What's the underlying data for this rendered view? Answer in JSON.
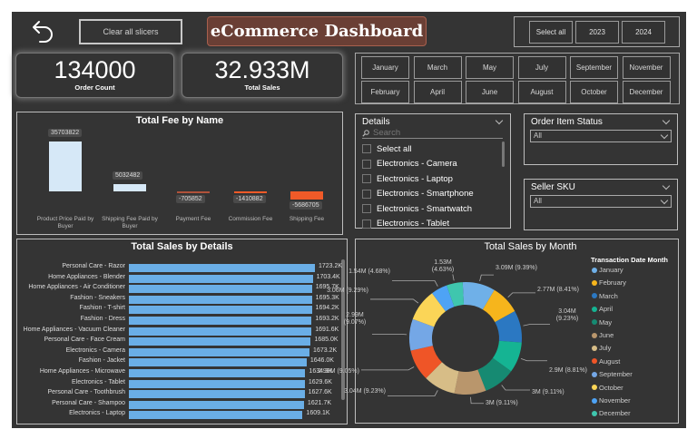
{
  "header": {
    "back_icon": "undo-arrow-icon",
    "clear_label": "Clear all slicers",
    "title": "eCommerce Dashboard",
    "year_buttons": [
      "Select all",
      "2023",
      "2024"
    ]
  },
  "kpis": [
    {
      "value": "134000",
      "label": "Order Count"
    },
    {
      "value": "32.933M",
      "label": "Total Sales"
    }
  ],
  "months_slicer": {
    "top_row": [
      "January",
      "March",
      "May",
      "July",
      "September",
      "November"
    ],
    "bottom_row": [
      "February",
      "April",
      "June",
      "August",
      "October",
      "December"
    ]
  },
  "details_slicer": {
    "title": "Details",
    "search_placeholder": "Search",
    "items": [
      "Select all",
      "Electronics - Camera",
      "Electronics - Laptop",
      "Electronics - Smartphone",
      "Electronics - Smartwatch",
      "Electronics - Tablet"
    ]
  },
  "order_status_slicer": {
    "title": "Order Item Status",
    "value": "All"
  },
  "seller_sku_slicer": {
    "title": "Seller SKU",
    "value": "All"
  },
  "colors": {
    "canvas": "#343434",
    "title_bg": "#6a3f35",
    "positive_bar": "#d6e8f7",
    "negative_bar": "#f05a28",
    "sales_bar": "#6aaee6"
  },
  "chart_data": [
    {
      "type": "bar",
      "title": "Total Fee by Name",
      "categories": [
        "Product Price Paid by Buyer",
        "Shipping Fee Paid by Buyer",
        "Payment Fee",
        "Commission Fee",
        "Shipping Fee"
      ],
      "values": [
        35703822,
        5032482,
        -705852,
        -1410882,
        -5686705
      ],
      "value_labels": [
        "35703822",
        "5032482",
        "-705852",
        "-1410882",
        "-5686705"
      ],
      "xlabel": "",
      "ylabel": ""
    },
    {
      "type": "bar",
      "orientation": "horizontal",
      "title": "Total Sales by Details",
      "categories": [
        "Personal Care - Razor",
        "Home Appliances - Blender",
        "Home Appliances - Air Conditioner",
        "Fashion - Sneakers",
        "Fashion - T-shirt",
        "Fashion - Dress",
        "Home Appliances - Vacuum Cleaner",
        "Personal Care - Face Cream",
        "Electronics - Camera",
        "Fashion - Jacket",
        "Home Appliances - Microwave",
        "Electronics - Tablet",
        "Personal Care - Toothbrush",
        "Personal Care - Shampoo",
        "Electronics - Laptop"
      ],
      "values": [
        1723.2,
        1703.4,
        1695.7,
        1695.3,
        1694.2,
        1693.2,
        1691.6,
        1685.0,
        1673.2,
        1646.0,
        1634.3,
        1629.6,
        1627.6,
        1621.7,
        1609.1
      ],
      "value_labels": [
        "1723.2K",
        "1703.4K",
        "1695.7K",
        "1695.3K",
        "1694.2K",
        "1693.2K",
        "1691.6K",
        "1685.0K",
        "1673.2K",
        "1646.0K",
        "1634.3K",
        "1629.6K",
        "1627.6K",
        "1621.7K",
        "1609.1K"
      ],
      "unit": "K"
    },
    {
      "type": "pie",
      "subtype": "donut",
      "title": "Total Sales by Month",
      "legend_title": "Transaction Date Month",
      "legend_position": "right",
      "slices": [
        {
          "name": "January",
          "value": 3.09,
          "label": "3.09M (9.39%)",
          "color": "#6fb0e8"
        },
        {
          "name": "February",
          "value": 2.77,
          "label": "2.77M (8.41%)",
          "color": "#f6b51c"
        },
        {
          "name": "March",
          "value": 3.04,
          "label": "3.04M (9.23%)",
          "color": "#2b78c2"
        },
        {
          "name": "April",
          "value": 2.9,
          "label": "2.9M (8.81%)",
          "color": "#15b493"
        },
        {
          "name": "May",
          "value": 3.0,
          "label": "3M (9.11%)",
          "color": "#168a72"
        },
        {
          "name": "June",
          "value": 3.0,
          "label": "3M (9.11%)",
          "color": "#b9966c"
        },
        {
          "name": "July",
          "value": 3.04,
          "label": "3.04M (9.23%)",
          "color": "#d7bd87"
        },
        {
          "name": "August",
          "value": 2.98,
          "label": "2.98M (9.05%)",
          "color": "#ef5527"
        },
        {
          "name": "September",
          "value": 2.99,
          "label": "2.99M (9.07%)",
          "color": "#74a7e6"
        },
        {
          "name": "October",
          "value": 3.06,
          "label": "3.06M (9.29%)",
          "color": "#fbd557"
        },
        {
          "name": "November",
          "value": 1.54,
          "label": "1.54M (4.68%)",
          "color": "#4ea3f5"
        },
        {
          "name": "December",
          "value": 1.53,
          "label": "1.53M (4.63%)",
          "color": "#3fc6ae"
        }
      ]
    }
  ]
}
